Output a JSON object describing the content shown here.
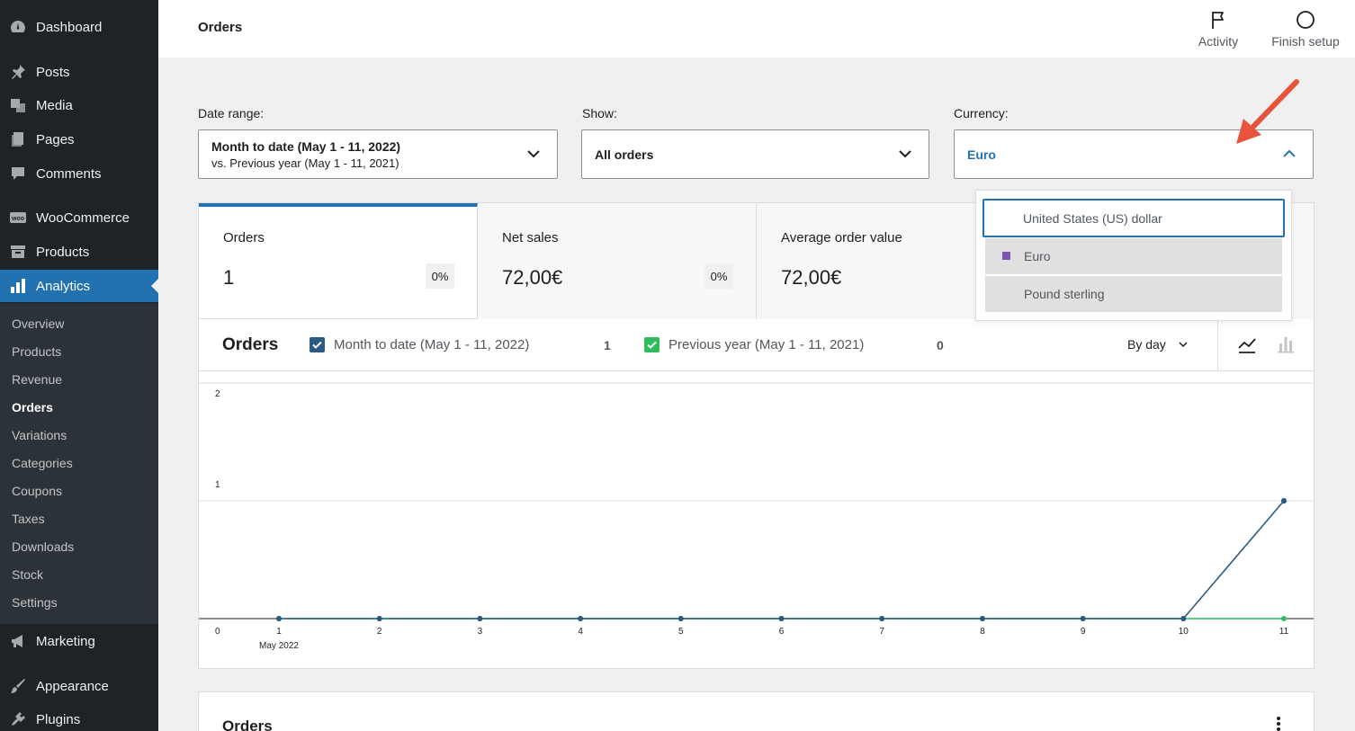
{
  "sidebar": {
    "items": [
      {
        "label": "Dashboard",
        "icon": "dashboard-icon"
      },
      {
        "label": "Posts",
        "icon": "pin-icon"
      },
      {
        "label": "Media",
        "icon": "media-icon"
      },
      {
        "label": "Pages",
        "icon": "pages-icon"
      },
      {
        "label": "Comments",
        "icon": "comment-icon"
      },
      {
        "label": "WooCommerce",
        "icon": "woo-icon"
      },
      {
        "label": "Products",
        "icon": "archive-icon"
      },
      {
        "label": "Analytics",
        "icon": "bar-chart-icon"
      },
      {
        "label": "Marketing",
        "icon": "megaphone-icon"
      },
      {
        "label": "Appearance",
        "icon": "brush-icon"
      },
      {
        "label": "Plugins",
        "icon": "plug-icon"
      }
    ],
    "submenu": [
      "Overview",
      "Products",
      "Revenue",
      "Orders",
      "Variations",
      "Categories",
      "Coupons",
      "Taxes",
      "Downloads",
      "Stock",
      "Settings"
    ],
    "current_submenu": "Orders"
  },
  "header": {
    "title": "Orders",
    "activity_label": "Activity",
    "finish_setup_label": "Finish setup"
  },
  "filters": {
    "date_range": {
      "label": "Date range:",
      "primary": "Month to date (May 1 - 11, 2022)",
      "secondary": "vs. Previous year (May 1 - 11, 2021)"
    },
    "show": {
      "label": "Show:",
      "value": "All orders"
    },
    "currency": {
      "label": "Currency:",
      "value": "Euro",
      "options": [
        "United States (US) dollar",
        "Euro",
        "Pound sterling"
      ],
      "selected": "Euro",
      "focused": "United States (US) dollar"
    }
  },
  "summary": [
    {
      "label": "Orders",
      "value": "1",
      "delta": "0%"
    },
    {
      "label": "Net sales",
      "value": "72,00€",
      "delta": "0%"
    },
    {
      "label": "Average order value",
      "value": "72,00€",
      "delta": ""
    }
  ],
  "chart": {
    "title": "Orders",
    "interval": "By day",
    "legend": [
      {
        "label": "Month to date (May 1 - 11, 2022)",
        "total": "1",
        "color": "#2b5a82"
      },
      {
        "label": "Previous year (May 1 - 11, 2021)",
        "total": "0",
        "color": "#2ebd59"
      }
    ]
  },
  "chart_data": {
    "type": "line",
    "x": [
      "1",
      "2",
      "3",
      "4",
      "5",
      "6",
      "7",
      "8",
      "9",
      "10",
      "11"
    ],
    "x_sublabel": "May 2022",
    "y_ticks": [
      "0",
      "1",
      "2"
    ],
    "ylim": [
      0,
      2
    ],
    "series": [
      {
        "name": "Month to date (May 1 - 11, 2022)",
        "values": [
          0,
          0,
          0,
          0,
          0,
          0,
          0,
          0,
          0,
          0,
          1
        ],
        "color": "#2b5a82"
      },
      {
        "name": "Previous year (May 1 - 11, 2021)",
        "values": [
          0,
          0,
          0,
          0,
          0,
          0,
          0,
          0,
          0,
          0,
          0
        ],
        "color": "#2ebd59"
      }
    ]
  },
  "table": {
    "title": "Orders"
  }
}
